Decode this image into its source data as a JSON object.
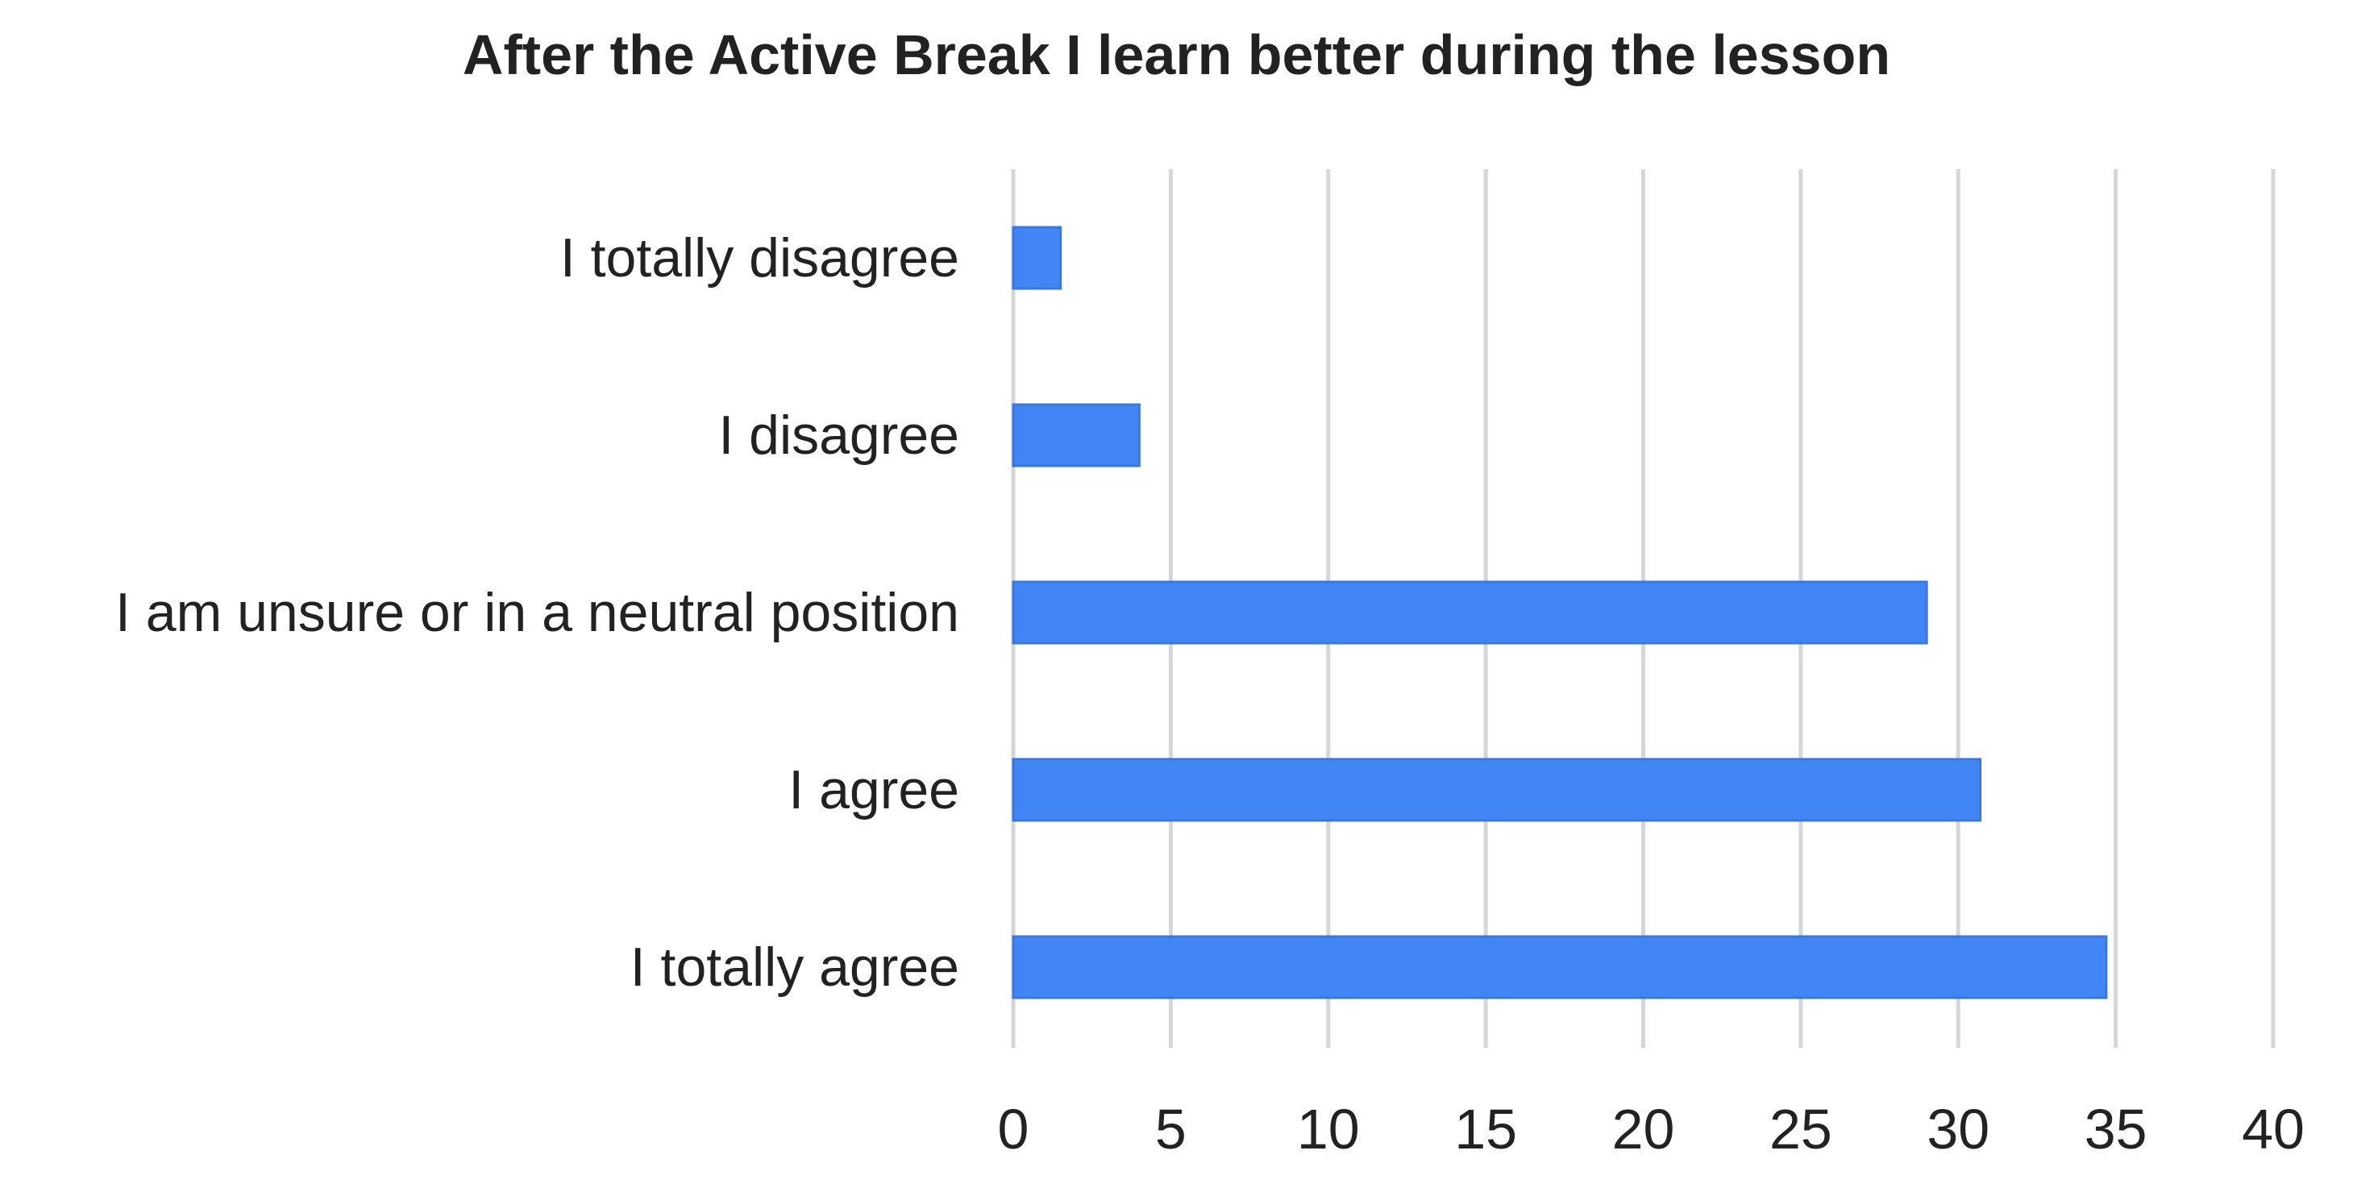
{
  "chart_data": {
    "type": "bar",
    "orientation": "horizontal",
    "title": "After the Active Break I learn better during the lesson",
    "xlabel": "",
    "ylabel": "",
    "categories": [
      "I totally disagree",
      "I disagree",
      "I am unsure or in a neutral position",
      "I  agree",
      "I totally agree"
    ],
    "values": [
      1.5,
      4,
      29,
      30.7,
      34.7
    ],
    "xlim": [
      0,
      40
    ],
    "xticks": [
      "0",
      "5",
      "10",
      "15",
      "20",
      "25",
      "30",
      "35",
      "40"
    ],
    "grid": true,
    "legend": "none",
    "bar_color": "#4285f4"
  }
}
